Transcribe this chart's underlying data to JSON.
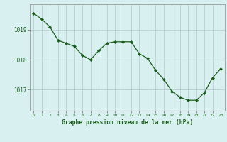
{
  "x": [
    0,
    1,
    2,
    3,
    4,
    5,
    6,
    7,
    8,
    9,
    10,
    11,
    12,
    13,
    14,
    15,
    16,
    17,
    18,
    19,
    20,
    21,
    22,
    23
  ],
  "y": [
    1019.55,
    1019.35,
    1019.1,
    1018.65,
    1018.55,
    1018.45,
    1018.15,
    1018.0,
    1018.3,
    1018.55,
    1018.6,
    1018.6,
    1018.6,
    1018.2,
    1018.05,
    1017.65,
    1017.35,
    1016.95,
    1016.75,
    1016.65,
    1016.65,
    1016.9,
    1017.4,
    1017.7
  ],
  "line_color": "#1a5c1a",
  "marker": "D",
  "marker_size": 2.2,
  "bg_color": "#d8f0f0",
  "grid_color": "#b0c8c8",
  "label_color": "#1a5c1a",
  "title": "Graphe pression niveau de la mer (hPa)",
  "ylabel_ticks": [
    1017,
    1018,
    1019
  ],
  "ylim": [
    1016.3,
    1019.85
  ],
  "xlim": [
    -0.5,
    23.5
  ]
}
